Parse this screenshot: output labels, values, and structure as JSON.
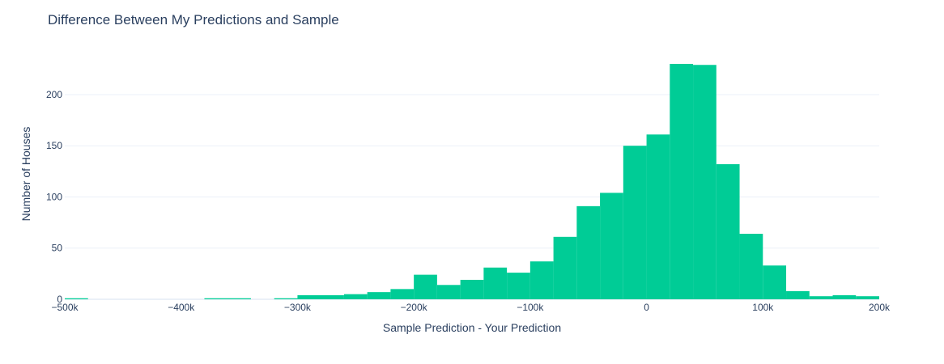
{
  "chart_data": {
    "type": "bar",
    "title": "Difference Between My Predictions and Sample",
    "xlabel": "Sample Prediction - Your Prediction",
    "ylabel": "Number of Houses",
    "color": "#00cc96",
    "xlim": [
      -500000,
      200000
    ],
    "ylim": [
      0,
      245
    ],
    "grid": true,
    "bin_width": 20000,
    "x_ticks": [
      {
        "value": -500000,
        "label": "−500k"
      },
      {
        "value": -400000,
        "label": "−400k"
      },
      {
        "value": -300000,
        "label": "−300k"
      },
      {
        "value": -200000,
        "label": "−200k"
      },
      {
        "value": -100000,
        "label": "−100k"
      },
      {
        "value": 0,
        "label": "0"
      },
      {
        "value": 100000,
        "label": "100k"
      },
      {
        "value": 200000,
        "label": "200k"
      }
    ],
    "y_ticks": [
      {
        "value": 0,
        "label": "0"
      },
      {
        "value": 50,
        "label": "50"
      },
      {
        "value": 100,
        "label": "100"
      },
      {
        "value": 150,
        "label": "150"
      },
      {
        "value": 200,
        "label": "200"
      }
    ],
    "bins": [
      {
        "start": -500000,
        "end": -480000,
        "count": 1
      },
      {
        "start": -380000,
        "end": -340000,
        "count": 1
      },
      {
        "start": -320000,
        "end": -300000,
        "count": 1
      },
      {
        "start": -300000,
        "end": -260000,
        "count": 4
      },
      {
        "start": -260000,
        "end": -240000,
        "count": 5
      },
      {
        "start": -240000,
        "end": -220000,
        "count": 7
      },
      {
        "start": -220000,
        "end": -200000,
        "count": 10
      },
      {
        "start": -200000,
        "end": -180000,
        "count": 24
      },
      {
        "start": -180000,
        "end": -160000,
        "count": 14
      },
      {
        "start": -160000,
        "end": -140000,
        "count": 19
      },
      {
        "start": -140000,
        "end": -120000,
        "count": 31
      },
      {
        "start": -120000,
        "end": -100000,
        "count": 26
      },
      {
        "start": -100000,
        "end": -80000,
        "count": 37
      },
      {
        "start": -80000,
        "end": -60000,
        "count": 61
      },
      {
        "start": -60000,
        "end": -40000,
        "count": 91
      },
      {
        "start": -40000,
        "end": -20000,
        "count": 104
      },
      {
        "start": -20000,
        "end": 0,
        "count": 150
      },
      {
        "start": 0,
        "end": 20000,
        "count": 161
      },
      {
        "start": 20000,
        "end": 40000,
        "count": 230
      },
      {
        "start": 40000,
        "end": 60000,
        "count": 229
      },
      {
        "start": 60000,
        "end": 80000,
        "count": 132
      },
      {
        "start": 80000,
        "end": 100000,
        "count": 64
      },
      {
        "start": 100000,
        "end": 120000,
        "count": 33
      },
      {
        "start": 120000,
        "end": 140000,
        "count": 8
      },
      {
        "start": 140000,
        "end": 160000,
        "count": 3
      },
      {
        "start": 160000,
        "end": 180000,
        "count": 4
      },
      {
        "start": 180000,
        "end": 200000,
        "count": 3
      }
    ]
  }
}
